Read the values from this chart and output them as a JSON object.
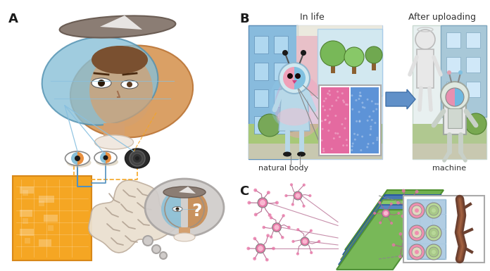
{
  "figure_width": 6.96,
  "figure_height": 3.85,
  "dpi": 100,
  "bg_color": "#ffffff",
  "label_A": "A",
  "label_B": "B",
  "label_C": "C",
  "text_in_life": "In life",
  "text_after_uploading": "After uploading",
  "text_natural_body": "natural body",
  "text_machine": "machine",
  "color_orange": "#F5A623",
  "color_blue_light": "#90C8E0",
  "color_blue_face": "#78B8D8",
  "color_orange_face": "#D4904A",
  "color_gray_hat": "#8B7D74",
  "color_skin": "#D4A070",
  "color_brown_hair": "#7A5030",
  "color_gray_light": "#C8C8C8",
  "color_gray_med": "#A0A0A0",
  "color_white": "#FFFFFF",
  "color_black": "#1A1A1A",
  "color_neuron_pink": "#E878A8",
  "color_axon_green": "#88C070",
  "color_axon_blue": "#6898C8",
  "color_building_blue": "#90C0D8",
  "color_pink_region": "#E8609A",
  "color_blue_region": "#5090D8",
  "color_grass": "#A8C878",
  "color_sidewalk": "#C8C8B8",
  "color_arrow_blue": "#5588CC"
}
